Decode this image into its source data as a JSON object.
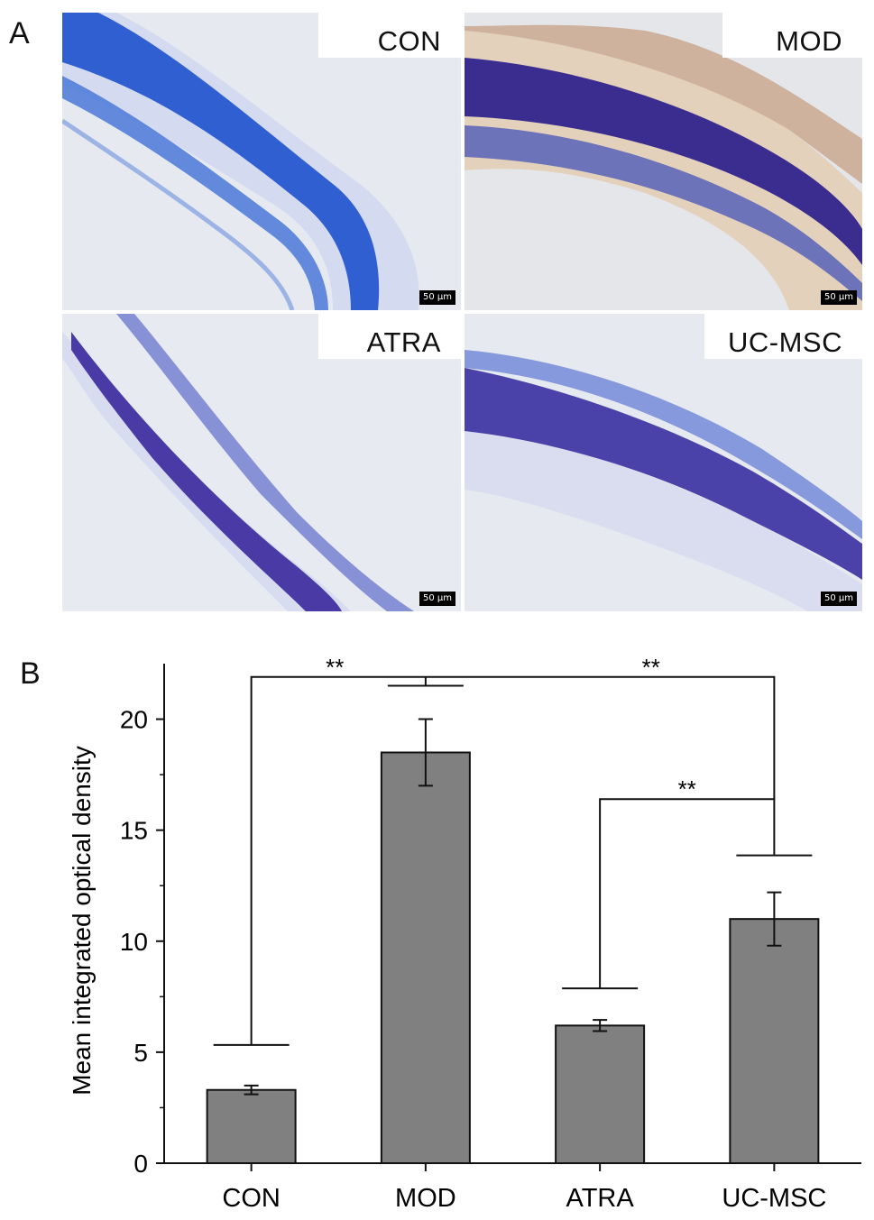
{
  "panel_a": {
    "letter": "A",
    "images": [
      {
        "label": "CON",
        "scale": "50 μm"
      },
      {
        "label": "MOD",
        "scale": "50 μm"
      },
      {
        "label": "ATRA",
        "scale": "50 μm"
      },
      {
        "label": "UC-MSC",
        "scale": "50 μm"
      }
    ]
  },
  "panel_b": {
    "letter": "B"
  },
  "chart_data": {
    "type": "bar",
    "title": "",
    "xlabel": "",
    "ylabel": "Mean integrated optical density",
    "categories": [
      "CON",
      "MOD",
      "ATRA",
      "UC-MSC"
    ],
    "values": [
      3.3,
      18.5,
      6.2,
      11.0
    ],
    "errors": [
      0.2,
      1.5,
      0.25,
      1.2
    ],
    "ylim": [
      0,
      22.5
    ],
    "yticks": [
      0,
      5,
      10,
      15,
      20
    ],
    "bar_color": "#808080",
    "significance": [
      {
        "label": "**",
        "between": [
          "CON",
          "UC-MSC"
        ]
      },
      {
        "label": "**",
        "between": [
          "ATRA",
          "UC-MSC"
        ]
      },
      {
        "label": "**",
        "between": [
          "MOD",
          "UC-MSC"
        ]
      }
    ]
  }
}
